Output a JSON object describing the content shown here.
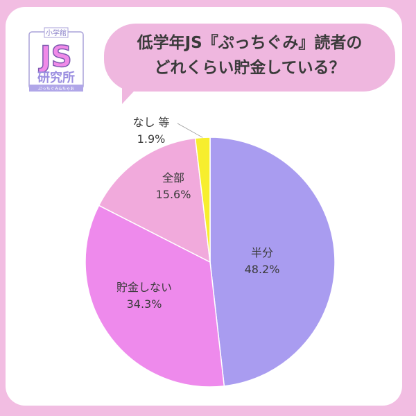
{
  "header": {
    "title_line1": "低学年JS『ぷっちぐみ』読者の",
    "title_line2": "どれくらい貯金している？"
  },
  "logo": {
    "top": "小学館",
    "main": "JS",
    "bottom": "研究所",
    "ribbon": "ぷっちぐみ&ちゃお"
  },
  "chart_data": {
    "type": "pie",
    "title": "低学年JS『ぷっちぐみ』読者のどれくらい貯金している？",
    "start": "top",
    "direction": "clockwise",
    "slices": [
      {
        "label": "半分",
        "value": 48.2,
        "display": "48.2%",
        "color": "#a99cf0"
      },
      {
        "label": "貯金しない",
        "value": 34.3,
        "display": "34.3%",
        "color": "#ee8aec"
      },
      {
        "label": "全部",
        "value": 15.6,
        "display": "15.6%",
        "color": "#f1aadc"
      },
      {
        "label": "なし 等",
        "value": 1.9,
        "display": "1.9%",
        "color": "#f7ee2e"
      }
    ]
  }
}
